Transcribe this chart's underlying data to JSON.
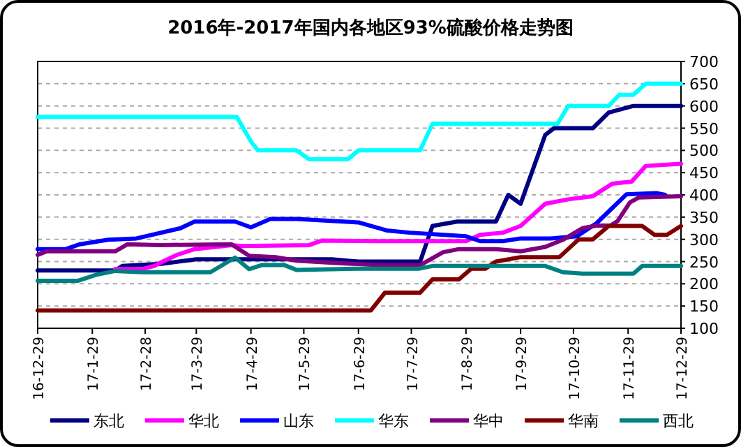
{
  "chart_data": {
    "type": "line",
    "title": "2016年-2017年国内各地区93%硫酸价格走势图",
    "xlim": [
      "2016-12-29",
      "2017-12-29"
    ],
    "xticks": [
      {
        "value": "2016-12-29",
        "label": "16-12-29"
      },
      {
        "value": "2017-01-29",
        "label": "17-1-29"
      },
      {
        "value": "2017-02-28",
        "label": "17-2-28"
      },
      {
        "value": "2017-03-29",
        "label": "17-3-29"
      },
      {
        "value": "2017-04-29",
        "label": "17-4-29"
      },
      {
        "value": "2017-05-29",
        "label": "17-5-29"
      },
      {
        "value": "2017-06-29",
        "label": "17-6-29"
      },
      {
        "value": "2017-07-29",
        "label": "17-7-29"
      },
      {
        "value": "2017-08-29",
        "label": "17-8-29"
      },
      {
        "value": "2017-09-29",
        "label": "17-9-29"
      },
      {
        "value": "2017-10-29",
        "label": "17-10-29"
      },
      {
        "value": "2017-11-29",
        "label": "17-11-29"
      },
      {
        "value": "2017-12-29",
        "label": "17-12-29"
      }
    ],
    "ylim": [
      100,
      700
    ],
    "yticks": [
      100,
      150,
      200,
      250,
      300,
      350,
      400,
      450,
      500,
      550,
      600,
      650,
      700
    ],
    "grid": "y",
    "legend": "bottom",
    "series": [
      {
        "name": "东北",
        "color": "#000080",
        "x": [
          "2016-12-29",
          "2017-02-11",
          "2017-02-15",
          "2017-03-09",
          "2017-03-29",
          "2017-06-14",
          "2017-06-29",
          "2017-08-03",
          "2017-08-10",
          "2017-08-24",
          "2017-09-15",
          "2017-09-22",
          "2017-09-29",
          "2017-10-13",
          "2017-10-18",
          "2017-11-09",
          "2017-11-18",
          "2017-12-02",
          "2017-12-29"
        ],
        "values": [
          230,
          230,
          240,
          245,
          255,
          255,
          250,
          250,
          330,
          340,
          340,
          400,
          380,
          535,
          550,
          550,
          585,
          600,
          600
        ]
      },
      {
        "name": "华北",
        "color": "#ff00ff",
        "x": [
          "2017-02-11",
          "2017-02-26",
          "2017-03-05",
          "2017-03-10",
          "2017-03-18",
          "2017-03-28",
          "2017-04-18",
          "2017-04-24",
          "2017-06-01",
          "2017-06-08",
          "2017-07-10",
          "2017-08-29",
          "2017-09-06",
          "2017-09-19",
          "2017-09-29",
          "2017-10-13",
          "2017-10-26",
          "2017-11-09",
          "2017-11-20",
          "2017-12-01",
          "2017-12-09",
          "2017-12-29"
        ],
        "values": [
          233,
          233,
          240,
          250,
          265,
          278,
          287,
          285,
          287,
          297,
          296,
          296,
          310,
          315,
          330,
          380,
          390,
          397,
          425,
          430,
          465,
          470
        ]
      },
      {
        "name": "山东",
        "color": "#0000ff",
        "x": [
          "2016-12-29",
          "2017-01-14",
          "2017-01-22",
          "2017-02-07",
          "2017-02-23",
          "2017-03-20",
          "2017-03-28",
          "2017-04-20",
          "2017-04-29",
          "2017-05-10",
          "2017-05-25",
          "2017-06-29",
          "2017-07-15",
          "2017-07-28",
          "2017-08-29",
          "2017-09-06",
          "2017-09-19",
          "2017-09-29",
          "2017-10-16",
          "2017-10-31",
          "2017-11-11",
          "2017-11-22",
          "2017-11-28",
          "2017-12-15",
          "2017-12-20"
        ],
        "values": [
          278,
          278,
          289,
          299,
          302,
          325,
          340,
          340,
          327,
          346,
          346,
          338,
          320,
          315,
          307,
          296,
          296,
          302,
          302,
          307,
          336,
          378,
          401,
          404,
          400
        ]
      },
      {
        "name": "华东",
        "color": "#00ffff",
        "x": [
          "2016-12-29",
          "2017-04-21",
          "2017-04-29",
          "2017-05-03",
          "2017-05-25",
          "2017-06-01",
          "2017-06-23",
          "2017-06-29",
          "2017-08-03",
          "2017-08-10",
          "2017-10-20",
          "2017-10-26",
          "2017-11-18",
          "2017-11-24",
          "2017-12-02",
          "2017-12-09",
          "2017-12-29"
        ],
        "values": [
          575,
          575,
          520,
          500,
          500,
          480,
          480,
          500,
          500,
          560,
          560,
          600,
          600,
          625,
          625,
          650,
          650
        ]
      },
      {
        "name": "华中",
        "color": "#800080",
        "x": [
          "2016-12-29",
          "2017-01-03",
          "2017-02-11",
          "2017-02-18",
          "2017-03-08",
          "2017-04-18",
          "2017-04-28",
          "2017-05-13",
          "2017-05-25",
          "2017-06-16",
          "2017-07-10",
          "2017-08-03",
          "2017-08-16",
          "2017-08-25",
          "2017-09-15",
          "2017-09-29",
          "2017-10-13",
          "2017-10-23",
          "2017-11-03",
          "2017-11-11",
          "2017-11-19",
          "2017-11-23",
          "2017-11-30",
          "2017-12-05",
          "2017-12-29"
        ],
        "values": [
          265,
          273,
          273,
          289,
          287,
          289,
          263,
          260,
          252,
          247,
          242,
          242,
          271,
          278,
          278,
          273,
          283,
          299,
          325,
          331,
          331,
          341,
          383,
          394,
          397
        ]
      },
      {
        "name": "华南",
        "color": "#800000",
        "x": [
          "2016-12-29",
          "2017-07-06",
          "2017-07-14",
          "2017-08-03",
          "2017-08-10",
          "2017-08-25",
          "2017-09-01",
          "2017-09-09",
          "2017-09-15",
          "2017-09-29",
          "2017-10-21",
          "2017-11-01",
          "2017-11-09",
          "2017-11-18",
          "2017-12-07",
          "2017-12-14",
          "2017-12-21",
          "2017-12-29"
        ],
        "values": [
          140,
          140,
          180,
          180,
          210,
          210,
          234,
          234,
          250,
          260,
          260,
          300,
          300,
          330,
          330,
          310,
          310,
          330
        ]
      },
      {
        "name": "西北",
        "color": "#008080",
        "x": [
          "2016-12-29",
          "2017-01-21",
          "2017-01-31",
          "2017-02-11",
          "2017-02-26",
          "2017-04-06",
          "2017-04-20",
          "2017-04-28",
          "2017-05-05",
          "2017-05-18",
          "2017-05-25",
          "2017-06-29",
          "2017-08-02",
          "2017-08-10",
          "2017-10-13",
          "2017-10-23",
          "2017-11-03",
          "2017-12-02",
          "2017-12-07",
          "2017-12-29"
        ],
        "values": [
          207,
          207,
          220,
          229,
          226,
          226,
          259,
          233,
          242,
          242,
          231,
          234,
          234,
          240,
          240,
          226,
          223,
          223,
          240,
          240
        ]
      }
    ]
  }
}
